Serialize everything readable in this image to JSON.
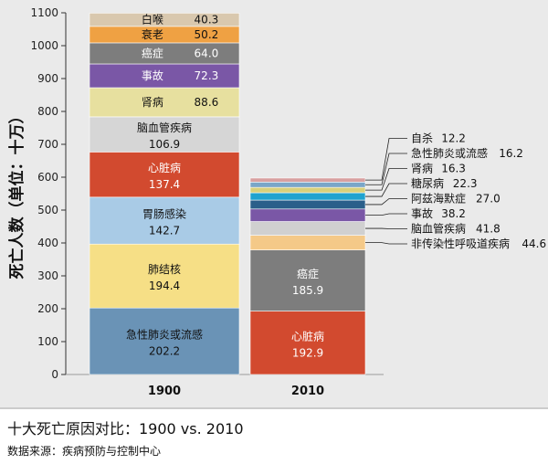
{
  "caption": {
    "title": "十大死亡原因对比：1900 vs. 2010",
    "source": "数据来源：疾病预防与控制中心"
  },
  "chart_data": {
    "type": "stacked-bar",
    "title": "",
    "ylabel": "死亡人数（单位：十万）",
    "xlabel": "",
    "ylim": [
      0,
      1100
    ],
    "yticks": [
      0,
      100,
      200,
      300,
      400,
      500,
      600,
      700,
      800,
      900,
      1000,
      1100
    ],
    "grid": false,
    "bars": [
      {
        "category": "1900",
        "segments": [
          {
            "label": "急性肺炎或流感",
            "value": 202.2,
            "value_label": "202.2",
            "color": "#6a93b6",
            "text_color": "#111111"
          },
          {
            "label": "肺结核",
            "value": 194.4,
            "value_label": "194.4",
            "color": "#f6df86",
            "text_color": "#111111"
          },
          {
            "label": "胃肠感染",
            "value": 142.7,
            "value_label": "142.7",
            "color": "#a9cbe6",
            "text_color": "#111111"
          },
          {
            "label": "心脏病",
            "value": 137.4,
            "value_label": "137.4",
            "color": "#d24a2f",
            "text_color": "#ffffff"
          },
          {
            "label": "脑血管疾病",
            "value": 106.9,
            "value_label": "106.9",
            "color": "#d6d6d6",
            "text_color": "#111111"
          },
          {
            "label": "肾病",
            "value": 88.6,
            "value_label": "88.6",
            "color": "#e7e09f",
            "text_color": "#111111"
          },
          {
            "label": "事故",
            "value": 72.3,
            "value_label": "72.3",
            "color": "#7a57a6",
            "text_color": "#ffffff"
          },
          {
            "label": "癌症",
            "value": 64.0,
            "value_label": "64.0",
            "color": "#7d7d7d",
            "text_color": "#ffffff"
          },
          {
            "label": "衰老",
            "value": 50.2,
            "value_label": "50.2",
            "color": "#efa143",
            "text_color": "#111111"
          },
          {
            "label": "白喉",
            "value": 40.3,
            "value_label": "40.3",
            "color": "#d9c8ae",
            "text_color": "#111111"
          }
        ]
      },
      {
        "category": "2010",
        "segments": [
          {
            "label": "心脏病",
            "value": 192.9,
            "value_label": "192.9",
            "color": "#d24a2f",
            "text_color": "#ffffff"
          },
          {
            "label": "癌症",
            "value": 185.9,
            "value_label": "185.9",
            "color": "#7d7d7d",
            "text_color": "#ffffff"
          },
          {
            "label": "非传染性呼吸道疾病",
            "value": 44.6,
            "value_label": "44.6",
            "color": "#f4c988",
            "text_color": "#111111"
          },
          {
            "label": "脑血管疾病",
            "value": 41.8,
            "value_label": "41.8",
            "color": "#d0d0d0",
            "text_color": "#111111"
          },
          {
            "label": "事故",
            "value": 38.2,
            "value_label": "38.2",
            "color": "#7a57a6",
            "text_color": "#ffffff"
          },
          {
            "label": "阿兹海默症",
            "value": 27.0,
            "value_label": "27.0",
            "color": "#2b5f8a",
            "text_color": "#ffffff"
          },
          {
            "label": "糖尿病",
            "value": 22.3,
            "value_label": "22.3",
            "color": "#1fa3cf",
            "text_color": "#ffffff"
          },
          {
            "label": "肾病",
            "value": 16.3,
            "value_label": "16.3",
            "color": "#d8d07a",
            "text_color": "#111111"
          },
          {
            "label": "急性肺炎或流感",
            "value": 16.2,
            "value_label": "16.2",
            "color": "#7aa6c8",
            "text_color": "#111111"
          },
          {
            "label": "自杀",
            "value": 12.2,
            "value_label": "12.2",
            "color": "#d8a0a0",
            "text_color": "#111111"
          }
        ]
      }
    ]
  }
}
